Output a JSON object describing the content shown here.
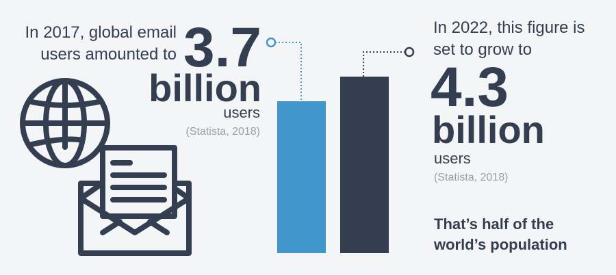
{
  "chart_data": {
    "type": "bar",
    "values": [
      3.7,
      4.3
    ],
    "colors": [
      "#4196cc",
      "#333f50"
    ],
    "annotations": [
      {
        "lead": [
          "In 2017, global email",
          "users amounted to"
        ],
        "unit": "billion",
        "noun": "users",
        "source": "(Statista, 2018)"
      },
      {
        "lead": [
          "In 2022, this figure is",
          "set to grow to"
        ],
        "unit": "billion",
        "noun": "users",
        "source": "(Statista, 2018)",
        "note": [
          "That’s half of the",
          "world’s population"
        ]
      }
    ]
  }
}
